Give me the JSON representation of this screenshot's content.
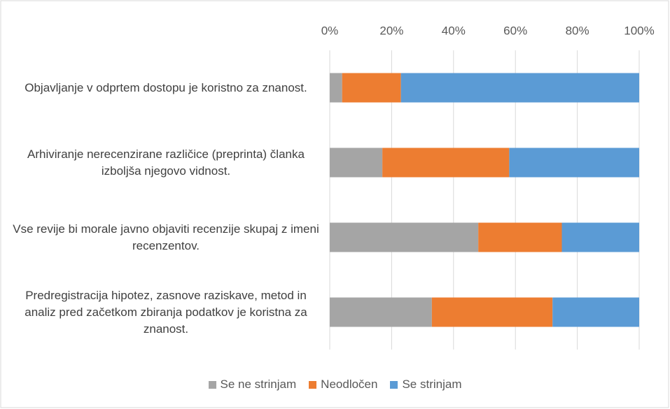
{
  "chart_data": {
    "type": "stacked_barh",
    "categories": [
      "Objavljanje v odprtem dostopu je koristno za znanost.",
      "Arhiviranje nerecenzirane različice (preprinta) članka izboljša njegovo vidnost.",
      "Vse revije bi morale javno objaviti recenzije skupaj z imeni recenzentov.",
      "Predregistracija hipotez, zasnove raziskave, metod in analiz pred začetkom zbiranja podatkov je koristna za znanost."
    ],
    "series": [
      {
        "name": "Se ne strinjam",
        "color": "#a5a5a5",
        "values": [
          4,
          17,
          48,
          33
        ]
      },
      {
        "name": "Neodločen",
        "color": "#ed7d31",
        "values": [
          19,
          41,
          27,
          39
        ]
      },
      {
        "name": "Se strinjam",
        "color": "#5b9bd5",
        "values": [
          77,
          42,
          25,
          28
        ]
      }
    ],
    "xlim": [
      0,
      100
    ],
    "xticks": [
      {
        "value": 0,
        "label": "0%"
      },
      {
        "value": 20,
        "label": "20%"
      },
      {
        "value": 40,
        "label": "40%"
      },
      {
        "value": 60,
        "label": "60%"
      },
      {
        "value": 80,
        "label": "80%"
      },
      {
        "value": 100,
        "label": "100%"
      }
    ],
    "grid": true,
    "legend": "bottom"
  }
}
